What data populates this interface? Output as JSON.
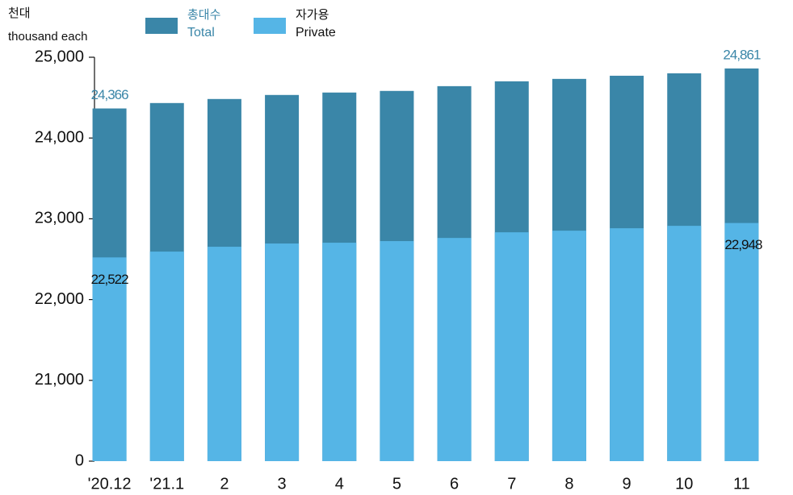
{
  "chart_data": {
    "type": "bar",
    "ylabel": [
      "천대",
      "thousand each"
    ],
    "categories": [
      "'20.12",
      "'21.1",
      "2",
      "3",
      "4",
      "5",
      "6",
      "7",
      "8",
      "9",
      "10",
      "11"
    ],
    "series": [
      {
        "name": "총대수",
        "name_en": "Total",
        "color": "#3a86a8",
        "label_color": "#3a86a8",
        "values": [
          24366,
          24433,
          24483,
          24533,
          24563,
          24583,
          24642,
          24702,
          24732,
          24771,
          24801,
          24861
        ],
        "value_labels": [
          "24,366",
          null,
          null,
          null,
          null,
          null,
          null,
          null,
          null,
          null,
          null,
          "24,861"
        ]
      },
      {
        "name": "자가용",
        "name_en": "Private",
        "color": "#55b5e6",
        "label_color": "#111111",
        "values": [
          22522,
          22594,
          22654,
          22694,
          22704,
          22724,
          22763,
          22833,
          22853,
          22883,
          22913,
          22948
        ],
        "value_labels": [
          "22,522",
          null,
          null,
          null,
          null,
          null,
          null,
          null,
          null,
          null,
          null,
          "22,948"
        ]
      }
    ],
    "ylim": [
      0,
      25000
    ],
    "scale_break": [
      0,
      21000
    ],
    "yticks": [
      {
        "value": 0,
        "label": "0"
      },
      {
        "value": 21000,
        "label": "21,000"
      },
      {
        "value": 22000,
        "label": "22,000"
      },
      {
        "value": 23000,
        "label": "23,000"
      },
      {
        "value": 24000,
        "label": "24,000"
      },
      {
        "value": 25000,
        "label": "25,000"
      }
    ],
    "overlap": true
  }
}
